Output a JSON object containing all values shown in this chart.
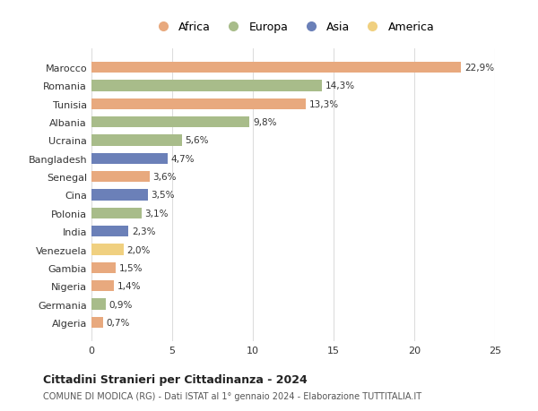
{
  "categories": [
    "Algeria",
    "Germania",
    "Nigeria",
    "Gambia",
    "Venezuela",
    "India",
    "Polonia",
    "Cina",
    "Senegal",
    "Bangladesh",
    "Ucraina",
    "Albania",
    "Tunisia",
    "Romania",
    "Marocco"
  ],
  "values": [
    0.7,
    0.9,
    1.4,
    1.5,
    2.0,
    2.3,
    3.1,
    3.5,
    3.6,
    4.7,
    5.6,
    9.8,
    13.3,
    14.3,
    22.9
  ],
  "continents": [
    "Africa",
    "Europa",
    "Africa",
    "Africa",
    "America",
    "Asia",
    "Europa",
    "Asia",
    "Africa",
    "Asia",
    "Europa",
    "Europa",
    "Africa",
    "Europa",
    "Africa"
  ],
  "labels": [
    "0,7%",
    "0,9%",
    "1,4%",
    "1,5%",
    "2,0%",
    "2,3%",
    "3,1%",
    "3,5%",
    "3,6%",
    "4,7%",
    "5,6%",
    "9,8%",
    "13,3%",
    "14,3%",
    "22,9%"
  ],
  "colors": {
    "Africa": "#E8A97E",
    "Europa": "#A8BC8A",
    "Asia": "#6B80B8",
    "America": "#F0D080"
  },
  "legend_order": [
    "Africa",
    "Europa",
    "Asia",
    "America"
  ],
  "title": "Cittadini Stranieri per Cittadinanza - 2024",
  "subtitle": "COMUNE DI MODICA (RG) - Dati ISTAT al 1° gennaio 2024 - Elaborazione TUTTITALIA.IT",
  "xlim": [
    0,
    25
  ],
  "xticks": [
    0,
    5,
    10,
    15,
    20,
    25
  ],
  "background_color": "#ffffff",
  "grid_color": "#dddddd",
  "bar_height": 0.6
}
